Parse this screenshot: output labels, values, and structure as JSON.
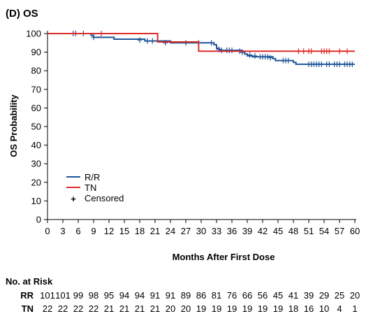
{
  "chart_data": {
    "type": "line",
    "title": "(D) OS",
    "xlabel": "Months After First Dose",
    "ylabel": "OS Probability",
    "xlim": [
      0,
      60
    ],
    "ylim": [
      0,
      100
    ],
    "x_ticks": [
      "0",
      "3",
      "6",
      "9",
      "12",
      "15",
      "18",
      "21",
      "24",
      "27",
      "30",
      "33",
      "36",
      "39",
      "42",
      "45",
      "48",
      "51",
      "54",
      "57",
      "60"
    ],
    "y_ticks": [
      "0",
      "10",
      "20",
      "30",
      "40",
      "50",
      "60",
      "70",
      "80",
      "90",
      "100"
    ],
    "grid": false,
    "legend_placement": "bottom-left",
    "legend": {
      "censored_label": "Censored",
      "censored_symbol": "+"
    },
    "series": [
      {
        "name": "R/R",
        "color": "#1f5597",
        "steps": [
          [
            0,
            100
          ],
          [
            8.5,
            99
          ],
          [
            9,
            98
          ],
          [
            13,
            97
          ],
          [
            19,
            96
          ],
          [
            21.5,
            96
          ],
          [
            24,
            95
          ],
          [
            32.5,
            94
          ],
          [
            33,
            92
          ],
          [
            33.5,
            91
          ],
          [
            38,
            90
          ],
          [
            38.5,
            89
          ],
          [
            39,
            88
          ],
          [
            40,
            87.5
          ],
          [
            44,
            86.5
          ],
          [
            44.5,
            85.5
          ],
          [
            48,
            84.5
          ],
          [
            48.5,
            83.5
          ],
          [
            60,
            83.5
          ]
        ],
        "censored": [
          [
            5,
            100
          ],
          [
            5.5,
            100
          ],
          [
            7,
            100
          ],
          [
            9,
            98
          ],
          [
            18,
            96.5
          ],
          [
            19.5,
            96
          ],
          [
            20.5,
            96
          ],
          [
            23,
            95
          ],
          [
            27,
            95
          ],
          [
            29.5,
            95
          ],
          [
            32,
            95
          ],
          [
            33.5,
            91.5
          ],
          [
            34,
            91
          ],
          [
            35,
            91
          ],
          [
            35.5,
            91
          ],
          [
            36,
            91
          ],
          [
            37.5,
            90.5
          ],
          [
            38,
            90
          ],
          [
            39.5,
            88.5
          ],
          [
            40.5,
            88
          ],
          [
            41.5,
            87.5
          ],
          [
            42,
            87.5
          ],
          [
            42.5,
            87.5
          ],
          [
            43,
            87.5
          ],
          [
            43.5,
            87
          ],
          [
            46,
            85.5
          ],
          [
            46.5,
            85.5
          ],
          [
            47,
            85.5
          ],
          [
            51,
            83.5
          ],
          [
            51.5,
            83.5
          ],
          [
            52,
            83.5
          ],
          [
            52.5,
            83.5
          ],
          [
            53,
            83.5
          ],
          [
            53.5,
            83.5
          ],
          [
            54.5,
            83.5
          ],
          [
            55,
            83.5
          ],
          [
            56,
            83.5
          ],
          [
            56.5,
            83.5
          ],
          [
            57,
            83.5
          ],
          [
            58,
            83.5
          ],
          [
            58.5,
            83.5
          ],
          [
            59,
            83.5
          ],
          [
            59.5,
            83.5
          ]
        ]
      },
      {
        "name": "TN",
        "color": "#dd2a2a",
        "steps": [
          [
            0,
            100
          ],
          [
            21.5,
            95.5
          ],
          [
            29.5,
            90.5
          ],
          [
            60,
            90.5
          ]
        ],
        "censored": [
          [
            10.5,
            100
          ],
          [
            49,
            90.5
          ],
          [
            50,
            90.5
          ],
          [
            51,
            90.5
          ],
          [
            51.5,
            90.5
          ],
          [
            53.5,
            90.5
          ],
          [
            54,
            90.5
          ],
          [
            54.5,
            90.5
          ],
          [
            55,
            90.5
          ],
          [
            57,
            90.5
          ],
          [
            58.5,
            90.5
          ]
        ]
      }
    ],
    "risk_table": {
      "title": "No. at Risk",
      "rows": [
        {
          "label": "RR",
          "values": [
            "101",
            "101",
            "99",
            "98",
            "95",
            "94",
            "94",
            "91",
            "91",
            "89",
            "86",
            "81",
            "76",
            "66",
            "56",
            "45",
            "41",
            "39",
            "29",
            "25",
            "20"
          ]
        },
        {
          "label": "TN",
          "values": [
            "22",
            "22",
            "22",
            "22",
            "21",
            "21",
            "21",
            "21",
            "20",
            "20",
            "19",
            "19",
            "19",
            "19",
            "19",
            "19",
            "18",
            "16",
            "10",
            "4",
            "1"
          ]
        }
      ]
    }
  }
}
